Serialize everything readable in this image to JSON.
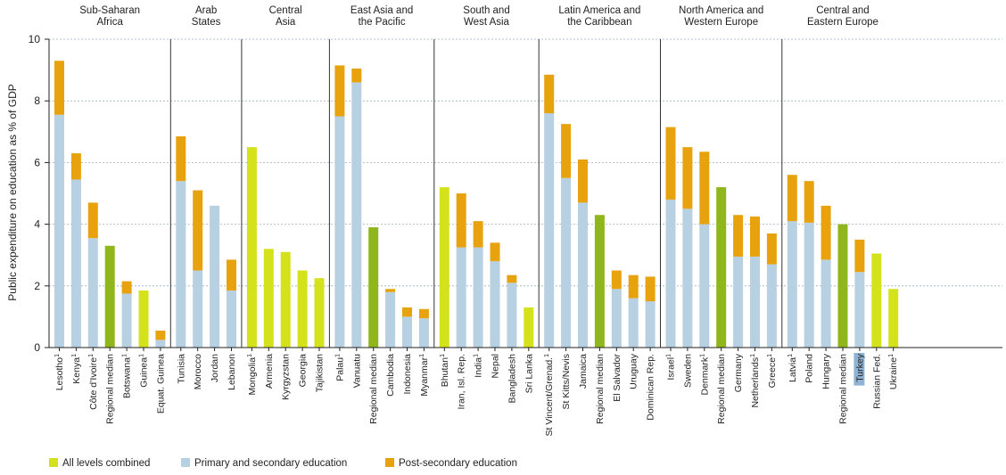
{
  "chart_data": {
    "type": "bar",
    "stacked": true,
    "ylabel": "Public expenditure on education as % of GDP",
    "ylim": [
      0,
      10
    ],
    "yticks": [
      0,
      2,
      4,
      6,
      8,
      10
    ],
    "grid": "horizontal-dotted",
    "legend_position": "bottom-left",
    "colors": {
      "all_levels": "#d4e21b",
      "primary_secondary": "#b7d0e2",
      "post_secondary": "#e8a20e",
      "regional_median": "#8fb61b"
    },
    "legend": [
      {
        "key": "all_levels",
        "label": "All levels combined"
      },
      {
        "key": "primary_secondary",
        "label": "Primary and secondary education"
      },
      {
        "key": "post_secondary",
        "label": "Post-secondary education"
      }
    ],
    "regions": [
      {
        "name": [
          "Sub-Saharan",
          "Africa"
        ],
        "countries": [
          {
            "label": "Lesotho",
            "sup": "1",
            "ps": 7.55,
            "post": 1.75
          },
          {
            "label": "Kenya",
            "sup": "1",
            "ps": 5.45,
            "post": 0.85
          },
          {
            "label": "Côte d’Ivoire",
            "sup": "1",
            "ps": 3.55,
            "post": 1.15
          },
          {
            "label": "Regional median",
            "median": 3.3
          },
          {
            "label": "Botswana",
            "sup": "1",
            "ps": 1.75,
            "post": 0.4
          },
          {
            "label": "Guinea",
            "sup": "1",
            "all": 1.85
          },
          {
            "label": "Equat. Guinea",
            "ps": 0.25,
            "post": 0.3
          }
        ]
      },
      {
        "name": [
          "Arab",
          "States"
        ],
        "countries": [
          {
            "label": "Tunisia",
            "ps": 5.4,
            "post": 1.45
          },
          {
            "label": "Morocco",
            "ps": 2.5,
            "post": 2.6
          },
          {
            "label": "Jordan",
            "ps": 4.6
          },
          {
            "label": "Lebanon",
            "ps": 1.85,
            "post": 1.0
          }
        ]
      },
      {
        "name": [
          "Central",
          "Asia"
        ],
        "countries": [
          {
            "label": "Mongolia",
            "sup": "1",
            "all": 6.5
          },
          {
            "label": "Armenia",
            "all": 3.2
          },
          {
            "label": "Kyrgyzstan",
            "all": 3.1
          },
          {
            "label": "Georgia",
            "all": 2.5
          },
          {
            "label": "Tajikistan",
            "all": 2.25
          }
        ]
      },
      {
        "name": [
          "East Asia and",
          "the Pacific"
        ],
        "countries": [
          {
            "label": "Palau",
            "sup": "1",
            "ps": 7.5,
            "post": 1.65
          },
          {
            "label": "Vanuatu",
            "ps": 8.6,
            "post": 0.45
          },
          {
            "label": "Regional median",
            "median": 3.9
          },
          {
            "label": "Cambodia",
            "ps": 1.8,
            "post": 0.1
          },
          {
            "label": "Indonesia",
            "ps": 1.0,
            "post": 0.3
          },
          {
            "label": "Myanmar",
            "sup": "1",
            "ps": 0.95,
            "post": 0.3
          }
        ]
      },
      {
        "name": [
          "South and",
          "West Asia"
        ],
        "countries": [
          {
            "label": "Bhutan",
            "sup": "1",
            "all": 5.2
          },
          {
            "label": "Iran, Isl. Rep.",
            "ps": 3.25,
            "post": 1.75
          },
          {
            "label": "India",
            "sup": "1",
            "ps": 3.25,
            "post": 0.85
          },
          {
            "label": "Nepal",
            "ps": 2.8,
            "post": 0.6
          },
          {
            "label": "Bangladesh",
            "ps": 2.1,
            "post": 0.25
          },
          {
            "label": "Sri Lanka",
            "all": 1.3
          }
        ]
      },
      {
        "name": [
          "Latin America and",
          "the Caribbean"
        ],
        "countries": [
          {
            "label": "St Vincent/Grenad.",
            "sup": "1",
            "ps": 7.6,
            "post": 1.25
          },
          {
            "label": "St Kitts/Nevis",
            "ps": 5.5,
            "post": 1.75
          },
          {
            "label": "Jamaica",
            "ps": 4.7,
            "post": 1.4
          },
          {
            "label": "Regional median",
            "median": 4.3
          },
          {
            "label": "El Salvador",
            "ps": 1.9,
            "post": 0.6
          },
          {
            "label": "Uruguay",
            "ps": 1.6,
            "post": 0.75
          },
          {
            "label": "Dominican Rep.",
            "ps": 1.5,
            "post": 0.8
          }
        ]
      },
      {
        "name": [
          "North America and",
          "Western Europe"
        ],
        "countries": [
          {
            "label": "Israel",
            "sup": "1",
            "ps": 4.8,
            "post": 2.35
          },
          {
            "label": "Sweden",
            "ps": 4.5,
            "post": 2.0
          },
          {
            "label": "Denmark",
            "sup": "1",
            "ps": 4.0,
            "post": 2.35
          },
          {
            "label": "Regional median",
            "median": 5.2
          },
          {
            "label": "Germany",
            "ps": 2.95,
            "post": 1.35
          },
          {
            "label": "Netherlands",
            "sup": "1",
            "ps": 2.95,
            "post": 1.3
          },
          {
            "label": "Greece",
            "sup": "1",
            "ps": 2.7,
            "post": 1.0
          }
        ]
      },
      {
        "name": [
          "Central and",
          "Eastern Europe"
        ],
        "countries": [
          {
            "label": "Latvia",
            "sup": "1",
            "ps": 4.1,
            "post": 1.5
          },
          {
            "label": "Poland",
            "ps": 4.05,
            "post": 1.35
          },
          {
            "label": "Hungary",
            "ps": 2.85,
            "post": 1.75
          },
          {
            "label": "Regional median",
            "median": 4.0
          },
          {
            "label": "Turkey",
            "ps": 2.45,
            "post": 1.05,
            "highlight": true
          },
          {
            "label": "Russian Fed.",
            "all": 3.05
          },
          {
            "label": "Ukraine",
            "sup": "1",
            "all": 1.9
          }
        ]
      }
    ]
  }
}
